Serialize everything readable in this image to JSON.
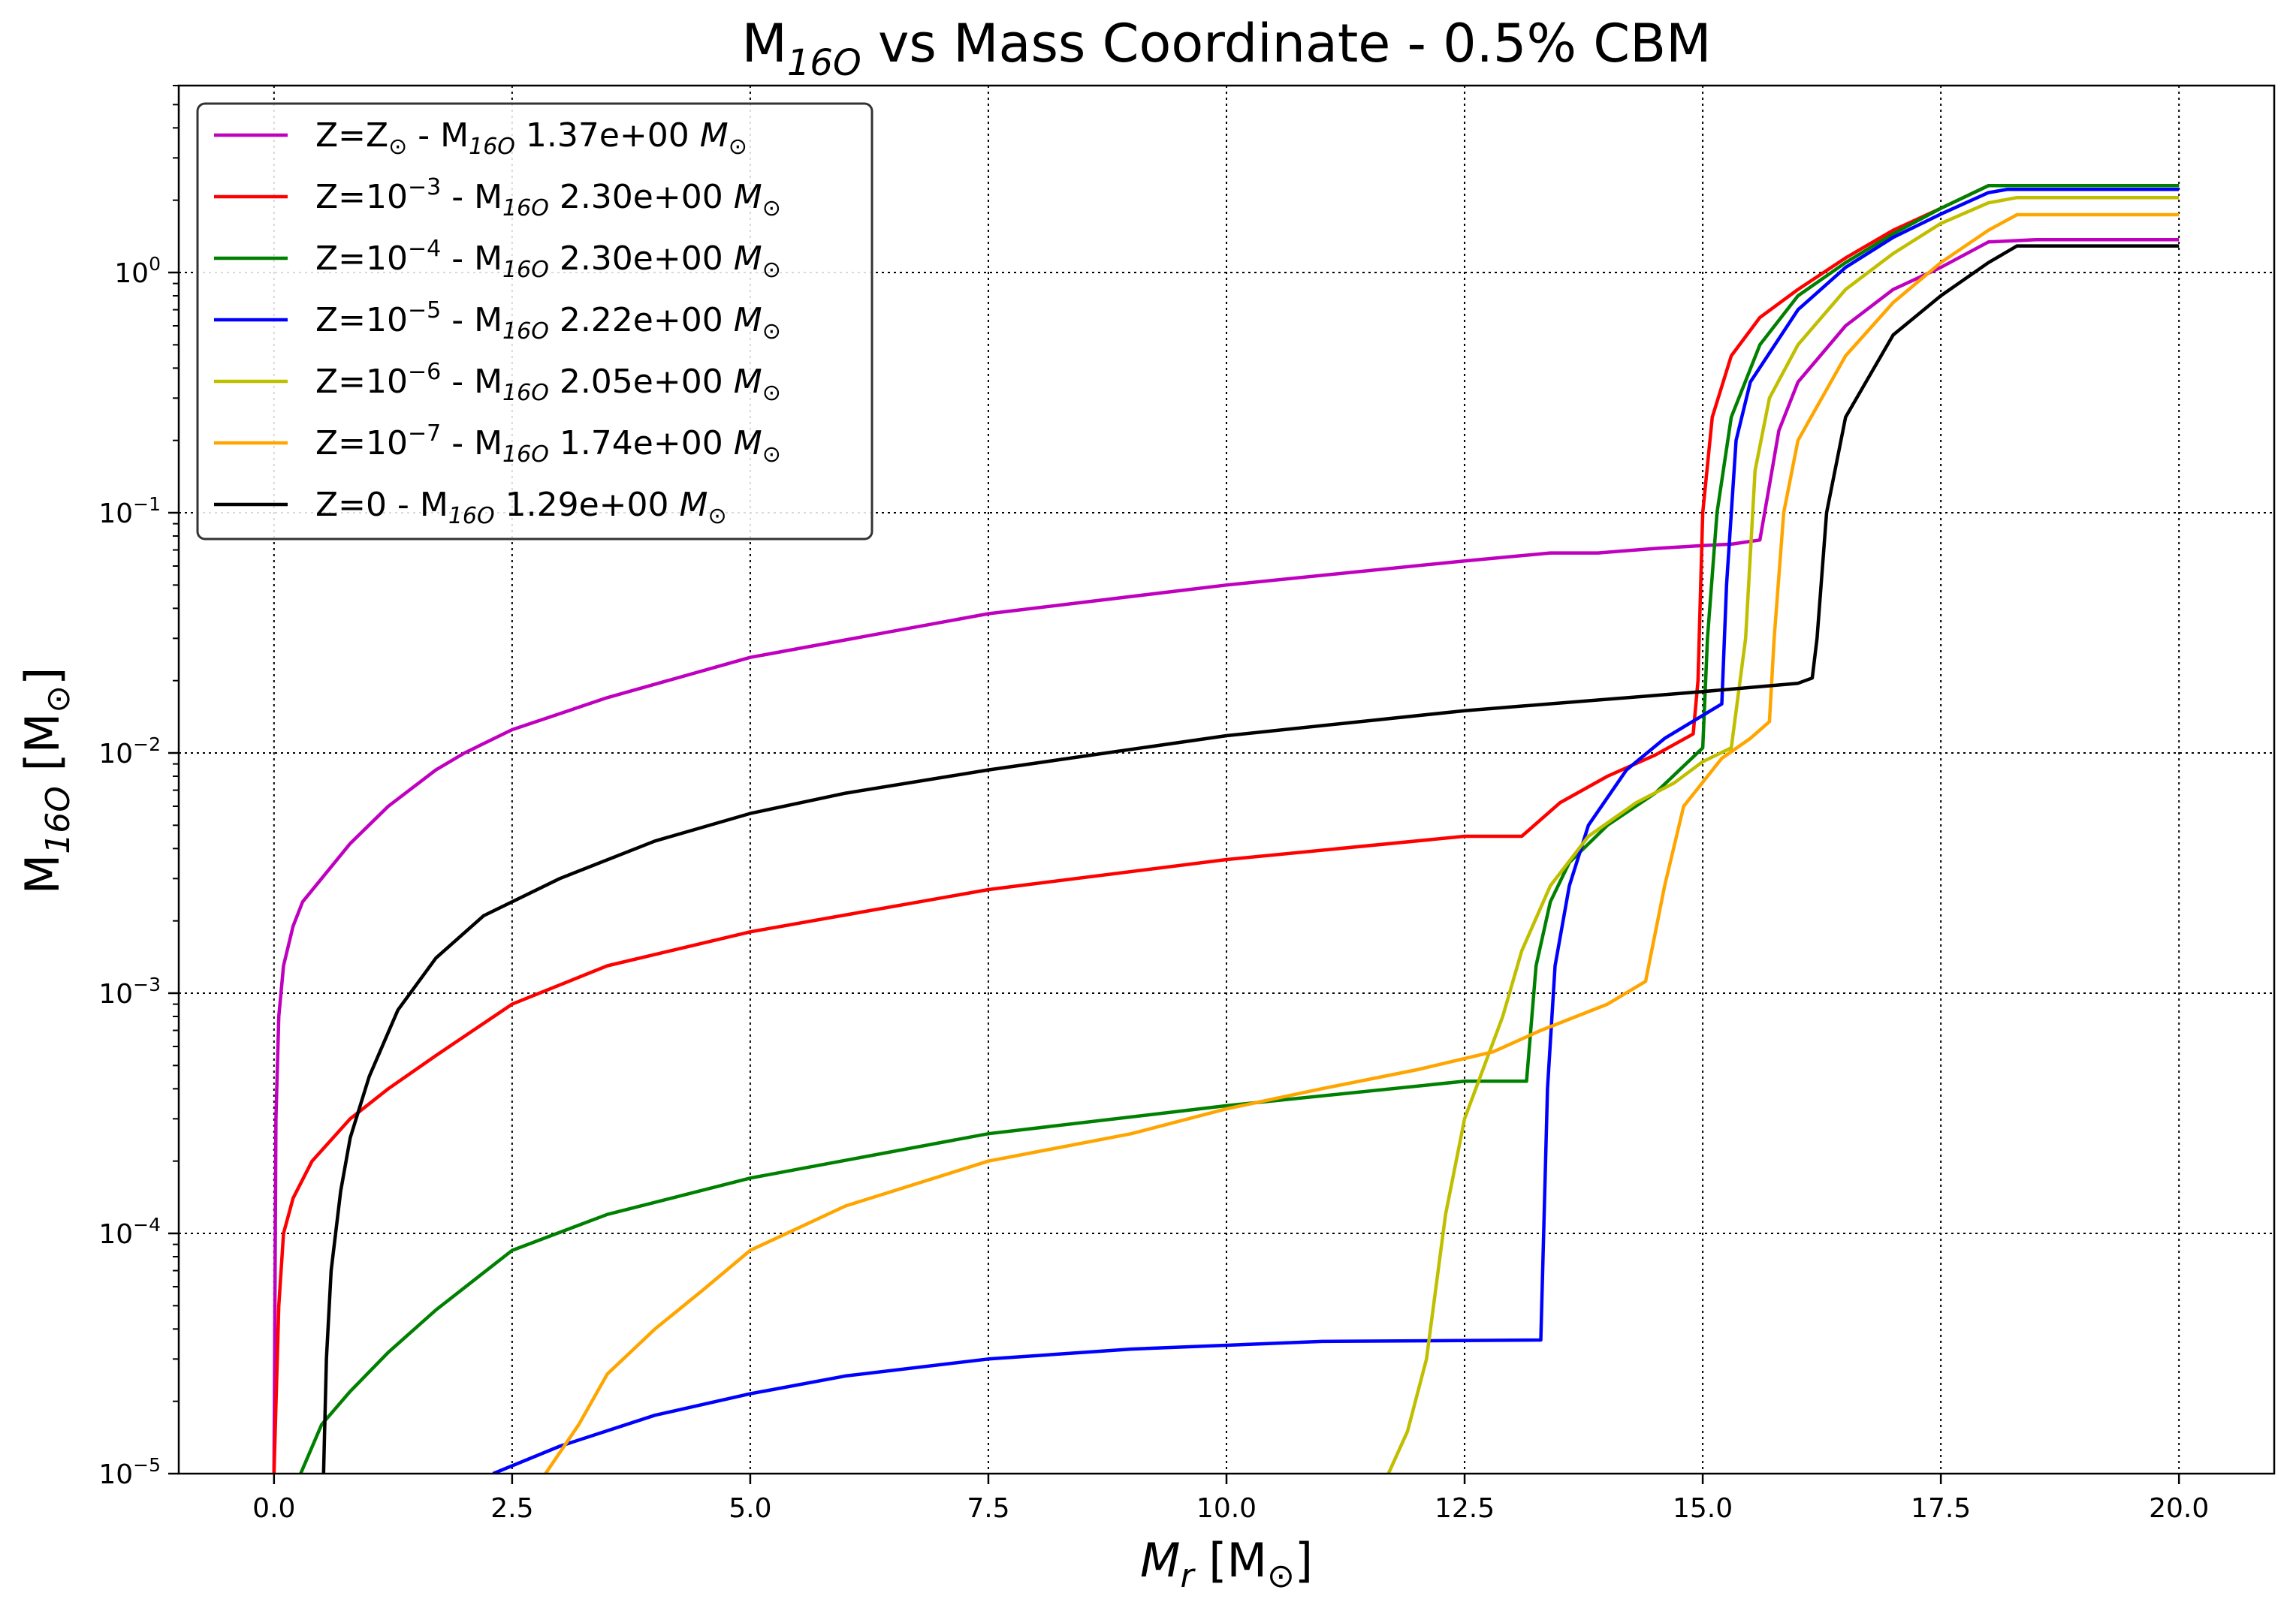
{
  "chart_data": {
    "type": "line",
    "title": {
      "base": "M",
      "sub": "16O",
      "rest": " vs Mass Coordinate - 0.5% CBM"
    },
    "xlabel": {
      "base": "M",
      "sub": "r",
      "rest": " [M",
      "sun": "⊙",
      "close": "]"
    },
    "ylabel": {
      "base": "M",
      "sub": "16O",
      "rest": " [M",
      "sun": "⊙",
      "close": "]"
    },
    "x_scale": "linear",
    "y_scale": "log",
    "xlim": [
      -1.0,
      21.0
    ],
    "ylim": [
      1e-05,
      6.0
    ],
    "grid": true,
    "legend_position": "upper-left",
    "x_ticks": [
      {
        "v": 0.0,
        "label": "0.0"
      },
      {
        "v": 2.5,
        "label": "2.5"
      },
      {
        "v": 5.0,
        "label": "5.0"
      },
      {
        "v": 7.5,
        "label": "7.5"
      },
      {
        "v": 10.0,
        "label": "10.0"
      },
      {
        "v": 12.5,
        "label": "12.5"
      },
      {
        "v": 15.0,
        "label": "15.0"
      },
      {
        "v": 17.5,
        "label": "17.5"
      },
      {
        "v": 20.0,
        "label": "20.0"
      }
    ],
    "y_ticks": [
      {
        "v": 1e-05,
        "base": "10",
        "exp": "−5"
      },
      {
        "v": 0.0001,
        "base": "10",
        "exp": "−4"
      },
      {
        "v": 0.001,
        "base": "10",
        "exp": "−3"
      },
      {
        "v": 0.01,
        "base": "10",
        "exp": "−2"
      },
      {
        "v": 0.1,
        "base": "10",
        "exp": "−1"
      },
      {
        "v": 1,
        "base": "10",
        "exp": "0"
      }
    ],
    "series": [
      {
        "color": "#bf00bf",
        "legend": {
          "z": "Z=Z",
          "z_sub": "⊙",
          "z_exp": "",
          "mid": " - M",
          "mid_sub": "16O",
          "value": " 1.37e+00 ",
          "unit": "M",
          "unit_sub": "⊙"
        },
        "points": [
          [
            0.0,
            1e-05
          ],
          [
            0.02,
            0.0003
          ],
          [
            0.05,
            0.0008
          ],
          [
            0.1,
            0.0013
          ],
          [
            0.2,
            0.0019
          ],
          [
            0.3,
            0.0024
          ],
          [
            0.5,
            0.003
          ],
          [
            0.8,
            0.0042
          ],
          [
            1.2,
            0.006
          ],
          [
            1.7,
            0.0085
          ],
          [
            2.0,
            0.01
          ],
          [
            2.5,
            0.0125
          ],
          [
            3.5,
            0.017
          ],
          [
            5.0,
            0.025
          ],
          [
            7.5,
            0.038
          ],
          [
            10.0,
            0.05
          ],
          [
            12.5,
            0.063
          ],
          [
            13.4,
            0.068
          ],
          [
            13.9,
            0.068
          ],
          [
            14.5,
            0.071
          ],
          [
            15.0,
            0.073
          ],
          [
            15.3,
            0.074
          ],
          [
            15.6,
            0.077
          ],
          [
            15.7,
            0.13
          ],
          [
            15.8,
            0.22
          ],
          [
            16.0,
            0.35
          ],
          [
            16.5,
            0.6
          ],
          [
            17.0,
            0.85
          ],
          [
            17.5,
            1.05
          ],
          [
            18.0,
            1.34
          ],
          [
            18.5,
            1.37
          ],
          [
            20.0,
            1.37
          ]
        ]
      },
      {
        "color": "#ff0000",
        "legend": {
          "z": "Z=10",
          "z_sub": "",
          "z_exp": "−3",
          "mid": " - M",
          "mid_sub": "16O",
          "value": " 2.30e+00 ",
          "unit": "M",
          "unit_sub": "⊙"
        },
        "points": [
          [
            0.0,
            1e-05
          ],
          [
            0.05,
            5e-05
          ],
          [
            0.1,
            0.0001
          ],
          [
            0.2,
            0.00014
          ],
          [
            0.4,
            0.0002
          ],
          [
            0.8,
            0.0003
          ],
          [
            1.2,
            0.0004
          ],
          [
            1.7,
            0.00055
          ],
          [
            2.5,
            0.0009
          ],
          [
            3.5,
            0.0013
          ],
          [
            5.0,
            0.0018
          ],
          [
            7.5,
            0.0027
          ],
          [
            10.0,
            0.0036
          ],
          [
            12.5,
            0.0045
          ],
          [
            13.1,
            0.0045
          ],
          [
            13.5,
            0.0062
          ],
          [
            14.0,
            0.008
          ],
          [
            14.5,
            0.0098
          ],
          [
            14.9,
            0.012
          ],
          [
            14.95,
            0.02
          ],
          [
            15.0,
            0.1
          ],
          [
            15.1,
            0.25
          ],
          [
            15.3,
            0.45
          ],
          [
            15.6,
            0.65
          ],
          [
            16.0,
            0.85
          ],
          [
            16.5,
            1.15
          ],
          [
            17.0,
            1.5
          ],
          [
            17.5,
            1.85
          ],
          [
            18.0,
            2.3
          ],
          [
            20.0,
            2.3
          ]
        ]
      },
      {
        "color": "#008000",
        "legend": {
          "z": "Z=10",
          "z_sub": "",
          "z_exp": "−4",
          "mid": " - M",
          "mid_sub": "16O",
          "value": " 2.30e+00 ",
          "unit": "M",
          "unit_sub": "⊙"
        },
        "points": [
          [
            0.28,
            1e-05
          ],
          [
            0.5,
            1.6e-05
          ],
          [
            0.8,
            2.2e-05
          ],
          [
            1.2,
            3.2e-05
          ],
          [
            1.7,
            4.8e-05
          ],
          [
            2.5,
            8.5e-05
          ],
          [
            3.5,
            0.00012
          ],
          [
            5.0,
            0.00017
          ],
          [
            7.5,
            0.00026
          ],
          [
            10.0,
            0.00034
          ],
          [
            12.5,
            0.00043
          ],
          [
            13.15,
            0.00043
          ],
          [
            13.25,
            0.0013
          ],
          [
            13.4,
            0.0024
          ],
          [
            13.6,
            0.0035
          ],
          [
            14.0,
            0.005
          ],
          [
            14.5,
            0.0068
          ],
          [
            15.0,
            0.0105
          ],
          [
            15.05,
            0.03
          ],
          [
            15.15,
            0.1
          ],
          [
            15.3,
            0.25
          ],
          [
            15.6,
            0.5
          ],
          [
            16.0,
            0.8
          ],
          [
            16.5,
            1.1
          ],
          [
            17.0,
            1.45
          ],
          [
            17.5,
            1.85
          ],
          [
            18.0,
            2.3
          ],
          [
            20.0,
            2.3
          ]
        ]
      },
      {
        "color": "#0000ff",
        "legend": {
          "z": "Z=10",
          "z_sub": "",
          "z_exp": "−5",
          "mid": " - M",
          "mid_sub": "16O",
          "value": " 2.22e+00 ",
          "unit": "M",
          "unit_sub": "⊙"
        },
        "points": [
          [
            2.3,
            1e-05
          ],
          [
            3.0,
            1.3e-05
          ],
          [
            4.0,
            1.75e-05
          ],
          [
            5.0,
            2.15e-05
          ],
          [
            6.0,
            2.55e-05
          ],
          [
            7.5,
            3e-05
          ],
          [
            9.0,
            3.3e-05
          ],
          [
            11.0,
            3.55e-05
          ],
          [
            13.3,
            3.6e-05
          ],
          [
            13.33,
            0.0001
          ],
          [
            13.37,
            0.0004
          ],
          [
            13.45,
            0.0013
          ],
          [
            13.6,
            0.0028
          ],
          [
            13.8,
            0.005
          ],
          [
            14.2,
            0.0085
          ],
          [
            14.6,
            0.0115
          ],
          [
            15.2,
            0.016
          ],
          [
            15.25,
            0.05
          ],
          [
            15.35,
            0.2
          ],
          [
            15.5,
            0.35
          ],
          [
            16.0,
            0.7
          ],
          [
            16.5,
            1.05
          ],
          [
            17.0,
            1.4
          ],
          [
            17.5,
            1.75
          ],
          [
            18.0,
            2.15
          ],
          [
            18.2,
            2.22
          ],
          [
            20.0,
            2.22
          ]
        ]
      },
      {
        "color": "#bfbf00",
        "legend": {
          "z": "Z=10",
          "z_sub": "",
          "z_exp": "−6",
          "mid": " - M",
          "mid_sub": "16O",
          "value": " 2.05e+00 ",
          "unit": "M",
          "unit_sub": "⊙"
        },
        "points": [
          [
            11.7,
            1e-05
          ],
          [
            11.9,
            1.5e-05
          ],
          [
            12.1,
            3e-05
          ],
          [
            12.3,
            0.00012
          ],
          [
            12.5,
            0.0003
          ],
          [
            12.9,
            0.0008
          ],
          [
            13.1,
            0.0015
          ],
          [
            13.4,
            0.0028
          ],
          [
            13.8,
            0.0045
          ],
          [
            14.3,
            0.0062
          ],
          [
            14.7,
            0.0075
          ],
          [
            15.0,
            0.0092
          ],
          [
            15.3,
            0.0105
          ],
          [
            15.45,
            0.03
          ],
          [
            15.55,
            0.15
          ],
          [
            15.7,
            0.3
          ],
          [
            16.0,
            0.5
          ],
          [
            16.5,
            0.85
          ],
          [
            17.0,
            1.2
          ],
          [
            17.5,
            1.6
          ],
          [
            18.0,
            1.95
          ],
          [
            18.3,
            2.05
          ],
          [
            20.0,
            2.05
          ]
        ]
      },
      {
        "color": "#ffa500",
        "legend": {
          "z": "Z=10",
          "z_sub": "",
          "z_exp": "−7",
          "mid": " - M",
          "mid_sub": "16O",
          "value": " 1.74e+00 ",
          "unit": "M",
          "unit_sub": "⊙"
        },
        "points": [
          [
            2.85,
            1e-05
          ],
          [
            3.2,
            1.6e-05
          ],
          [
            3.5,
            2.6e-05
          ],
          [
            4.0,
            4e-05
          ],
          [
            4.5,
            5.8e-05
          ],
          [
            5.0,
            8.5e-05
          ],
          [
            6.0,
            0.00013
          ],
          [
            7.5,
            0.0002
          ],
          [
            9.0,
            0.00026
          ],
          [
            10.0,
            0.00033
          ],
          [
            11.0,
            0.0004
          ],
          [
            12.0,
            0.00048
          ],
          [
            12.8,
            0.00057
          ],
          [
            13.3,
            0.0007
          ],
          [
            14.0,
            0.0009
          ],
          [
            14.4,
            0.00112
          ],
          [
            14.6,
            0.0028
          ],
          [
            14.8,
            0.006
          ],
          [
            15.2,
            0.0095
          ],
          [
            15.5,
            0.0115
          ],
          [
            15.7,
            0.0135
          ],
          [
            15.75,
            0.03
          ],
          [
            15.85,
            0.1
          ],
          [
            16.0,
            0.2
          ],
          [
            16.5,
            0.45
          ],
          [
            17.0,
            0.75
          ],
          [
            17.5,
            1.1
          ],
          [
            18.0,
            1.5
          ],
          [
            18.3,
            1.74
          ],
          [
            20.0,
            1.74
          ]
        ]
      },
      {
        "color": "#000000",
        "legend": {
          "z": "Z=0",
          "z_sub": "",
          "z_exp": "",
          "mid": " - M",
          "mid_sub": "16O",
          "value": " 1.29e+00 ",
          "unit": "M",
          "unit_sub": "⊙"
        },
        "points": [
          [
            0.52,
            1e-05
          ],
          [
            0.55,
            3e-05
          ],
          [
            0.6,
            7e-05
          ],
          [
            0.7,
            0.00015
          ],
          [
            0.8,
            0.00025
          ],
          [
            1.0,
            0.00045
          ],
          [
            1.3,
            0.00085
          ],
          [
            1.7,
            0.0014
          ],
          [
            2.2,
            0.0021
          ],
          [
            3.0,
            0.003
          ],
          [
            4.0,
            0.0043
          ],
          [
            5.0,
            0.0056
          ],
          [
            6.0,
            0.0068
          ],
          [
            7.5,
            0.0085
          ],
          [
            10.0,
            0.0118
          ],
          [
            12.5,
            0.015
          ],
          [
            15.0,
            0.018
          ],
          [
            16.0,
            0.0195
          ],
          [
            16.15,
            0.0205
          ],
          [
            16.2,
            0.03
          ],
          [
            16.3,
            0.1
          ],
          [
            16.5,
            0.25
          ],
          [
            17.0,
            0.55
          ],
          [
            17.5,
            0.8
          ],
          [
            18.0,
            1.1
          ],
          [
            18.3,
            1.29
          ],
          [
            20.0,
            1.29
          ]
        ]
      }
    ]
  }
}
